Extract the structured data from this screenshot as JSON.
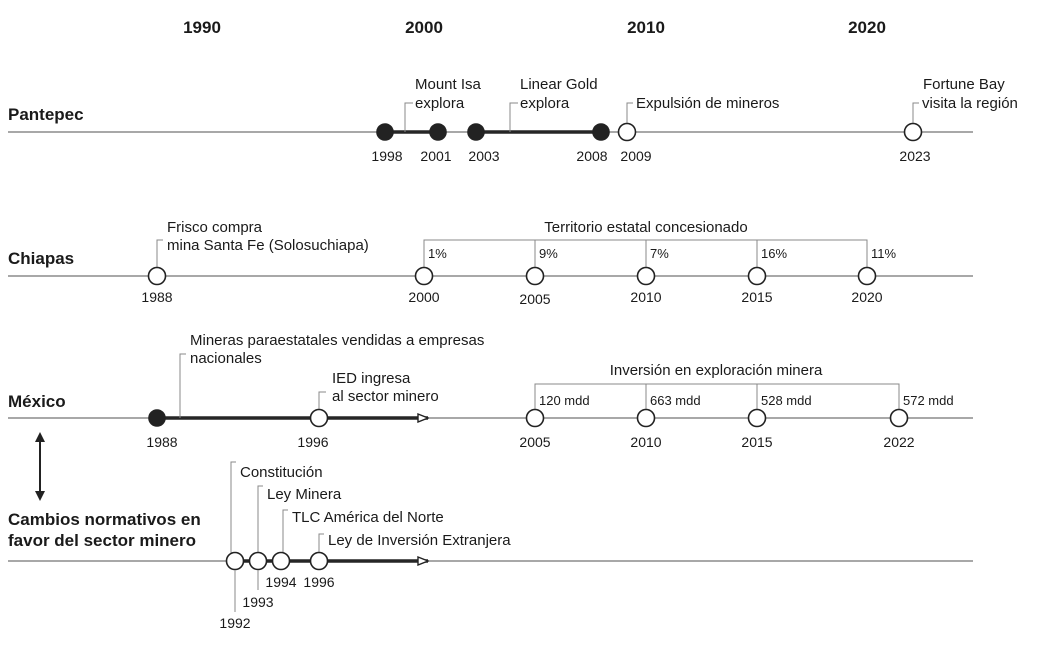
{
  "decades": [
    "1990",
    "2000",
    "2010",
    "2020"
  ],
  "rows": {
    "pantepec": {
      "label": "Pantepec",
      "nodes": [
        {
          "year": "1998",
          "filled": true
        },
        {
          "year": "2001",
          "filled": true
        },
        {
          "year": "2003",
          "filled": true
        },
        {
          "year": "2008",
          "filled": true
        },
        {
          "year": "2009",
          "filled": false
        },
        {
          "year": "2023",
          "filled": false
        }
      ],
      "events": [
        {
          "lines": [
            "Mount Isa",
            "explora"
          ]
        },
        {
          "lines": [
            "Linear Gold",
            "explora"
          ]
        },
        {
          "lines": [
            "Expulsión de mineros"
          ]
        },
        {
          "lines": [
            "Fortune Bay",
            "visita la región"
          ]
        }
      ]
    },
    "chiapas": {
      "label": "Chiapas",
      "nodes": [
        {
          "year": "1988",
          "filled": false
        },
        {
          "year": "2000",
          "filled": false
        },
        {
          "year": "2005",
          "filled": false
        },
        {
          "year": "2010",
          "filled": false
        },
        {
          "year": "2015",
          "filled": false
        },
        {
          "year": "2020",
          "filled": false
        }
      ],
      "event": {
        "lines": [
          "Frisco compra",
          "mina Santa Fe (Solosuchiapa)"
        ]
      },
      "bracket_title": "Territorio estatal concesionado",
      "bracket_values": [
        "1%",
        "9%",
        "7%",
        "16%",
        "11%"
      ]
    },
    "mexico": {
      "label": "México",
      "nodes": [
        {
          "year": "1988",
          "filled": true
        },
        {
          "year": "1996",
          "filled": false
        },
        {
          "year": "2005",
          "filled": false
        },
        {
          "year": "2010",
          "filled": false
        },
        {
          "year": "2015",
          "filled": false
        },
        {
          "year": "2022",
          "filled": false
        }
      ],
      "events": [
        {
          "lines": [
            "Mineras paraestatales vendidas a empresas",
            "nacionales"
          ]
        },
        {
          "lines": [
            "IED ingresa",
            "al sector minero"
          ]
        }
      ],
      "bracket_title": "Inversión en exploración minera",
      "bracket_values": [
        "120 mdd",
        "663 mdd",
        "528 mdd",
        "572 mdd"
      ]
    },
    "normativos": {
      "label_lines": [
        "Cambios normativos en",
        "favor del sector minero"
      ],
      "nodes": [
        {
          "year": "1992",
          "filled": false
        },
        {
          "year": "1993",
          "filled": false
        },
        {
          "year": "1994",
          "filled": false
        },
        {
          "year": "1996",
          "filled": false
        }
      ],
      "events": [
        {
          "lines": [
            "Constitución"
          ]
        },
        {
          "lines": [
            "Ley Minera"
          ]
        },
        {
          "lines": [
            "TLC América del Norte"
          ]
        },
        {
          "lines": [
            "Ley de Inversión Extranjera"
          ]
        }
      ]
    }
  }
}
